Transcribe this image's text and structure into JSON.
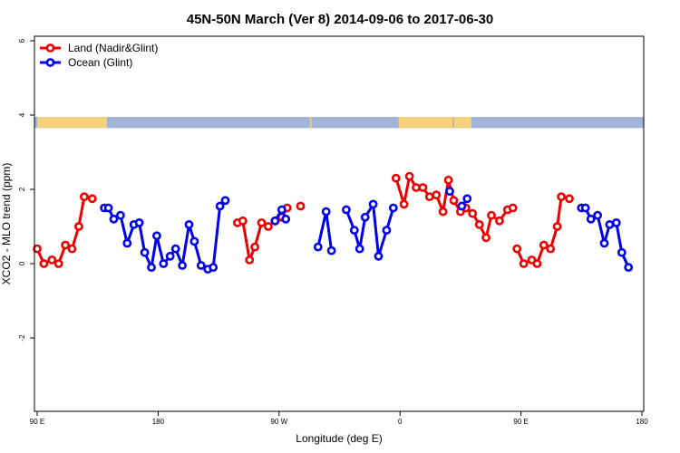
{
  "chart_data": {
    "type": "line",
    "title": "45N-50N March (Ver 8)   2014-09-06 to 2017-06-30",
    "xlabel": "Longitude (deg E)",
    "ylabel": "XCO2 - MLO trend (ppm)",
    "xlim": [
      90,
      540
    ],
    "ylim": [
      -4,
      6
    ],
    "x_ticks": [
      {
        "value": 90,
        "label": "90 E"
      },
      {
        "value": 180,
        "label": "180"
      },
      {
        "value": 270,
        "label": "90 W"
      },
      {
        "value": 360,
        "label": "0"
      },
      {
        "value": 450,
        "label": "90 E"
      },
      {
        "value": 540,
        "label": "180"
      }
    ],
    "y_ticks": [
      {
        "value": -2,
        "label": "-2"
      },
      {
        "value": 0,
        "label": "0"
      },
      {
        "value": 2,
        "label": "2"
      },
      {
        "value": 4,
        "label": "4"
      },
      {
        "value": 6,
        "label": "6"
      }
    ],
    "legend": {
      "placement": "top-left",
      "entries": [
        {
          "name": "Land (Nadir&Glint)",
          "color": "#ee0000"
        },
        {
          "name": "Ocean (Glint)",
          "color": "#0000ee"
        }
      ]
    },
    "surface_strip": {
      "y_range": [
        3.65,
        3.95
      ],
      "land_color": "#f5d27a",
      "ocean_color": "#9fb4d8",
      "land_x_ranges": [
        [
          90,
          142
        ],
        [
          293,
          294
        ],
        [
          359,
          399
        ],
        [
          400,
          413
        ]
      ]
    },
    "series": [
      {
        "name": "Land (Nadir&Glint)",
        "color": "#ee0000",
        "segments": [
          [
            [
              90,
              0.4
            ],
            [
              95,
              0.0
            ],
            [
              101,
              0.1
            ],
            [
              106,
              0.0
            ],
            [
              111,
              0.5
            ],
            [
              116,
              0.4
            ],
            [
              121,
              1.0
            ],
            [
              125,
              1.8
            ],
            [
              131,
              1.75
            ]
          ],
          [
            [
              239,
              1.1
            ],
            [
              243,
              1.15
            ],
            [
              248,
              0.1
            ],
            [
              252,
              0.45
            ],
            [
              257,
              1.1
            ],
            [
              262,
              1.0
            ],
            [
              267,
              1.15
            ],
            [
              272,
              1.25
            ],
            [
              276,
              1.5
            ]
          ],
          [
            [
              286,
              1.55
            ]
          ],
          [
            [
              357,
              2.3
            ],
            [
              363,
              1.6
            ],
            [
              367,
              2.35
            ],
            [
              372,
              2.05
            ],
            [
              377,
              2.05
            ],
            [
              382,
              1.8
            ],
            [
              387,
              1.85
            ],
            [
              392,
              1.4
            ],
            [
              396,
              2.25
            ],
            [
              400,
              1.7
            ],
            [
              405,
              1.4
            ],
            [
              409,
              1.5
            ],
            [
              414,
              1.35
            ],
            [
              419,
              1.05
            ],
            [
              424,
              0.7
            ],
            [
              428,
              1.3
            ],
            [
              434,
              1.15
            ],
            [
              440,
              1.45
            ],
            [
              444,
              1.5
            ]
          ],
          [
            [
              447,
              0.4
            ],
            [
              452,
              0.0
            ],
            [
              458,
              0.1
            ],
            [
              462,
              0.0
            ],
            [
              467,
              0.5
            ],
            [
              472,
              0.4
            ],
            [
              477,
              1.0
            ],
            [
              480,
              1.8
            ],
            [
              486,
              1.75
            ]
          ]
        ]
      },
      {
        "name": "Ocean (Glint)",
        "color": "#0000ee",
        "segments": [
          [
            [
              140,
              1.5
            ],
            [
              143,
              1.5
            ],
            [
              147,
              1.2
            ],
            [
              152,
              1.3
            ],
            [
              157,
              0.55
            ],
            [
              162,
              1.05
            ],
            [
              166,
              1.1
            ],
            [
              170,
              0.3
            ],
            [
              175,
              -0.1
            ],
            [
              179,
              0.75
            ],
            [
              184,
              0.0
            ],
            [
              189,
              0.2
            ],
            [
              193,
              0.4
            ],
            [
              198,
              -0.05
            ],
            [
              203,
              1.05
            ],
            [
              207,
              0.6
            ],
            [
              212,
              -0.05
            ],
            [
              217,
              -0.15
            ],
            [
              221,
              -0.1
            ],
            [
              226,
              1.55
            ],
            [
              230,
              1.7
            ]
          ],
          [
            [
              267,
              1.15
            ],
            [
              272,
              1.45
            ],
            [
              275,
              1.2
            ]
          ],
          [
            [
              299,
              0.45
            ],
            [
              305,
              1.4
            ],
            [
              309,
              0.35
            ]
          ],
          [
            [
              320,
              1.45
            ],
            [
              326,
              0.9
            ],
            [
              330,
              0.4
            ],
            [
              334,
              1.25
            ],
            [
              340,
              1.6
            ],
            [
              344,
              0.2
            ],
            [
              350,
              0.9
            ],
            [
              355,
              1.5
            ]
          ],
          [
            [
              397,
              1.95
            ]
          ],
          [
            [
              406,
              1.55
            ],
            [
              410,
              1.75
            ]
          ],
          [
            [
              495,
              1.5
            ],
            [
              498,
              1.5
            ],
            [
              502,
              1.2
            ],
            [
              507,
              1.3
            ],
            [
              512,
              0.55
            ],
            [
              516,
              1.05
            ],
            [
              521,
              1.1
            ],
            [
              525,
              0.3
            ],
            [
              530,
              -0.1
            ]
          ]
        ]
      }
    ]
  }
}
